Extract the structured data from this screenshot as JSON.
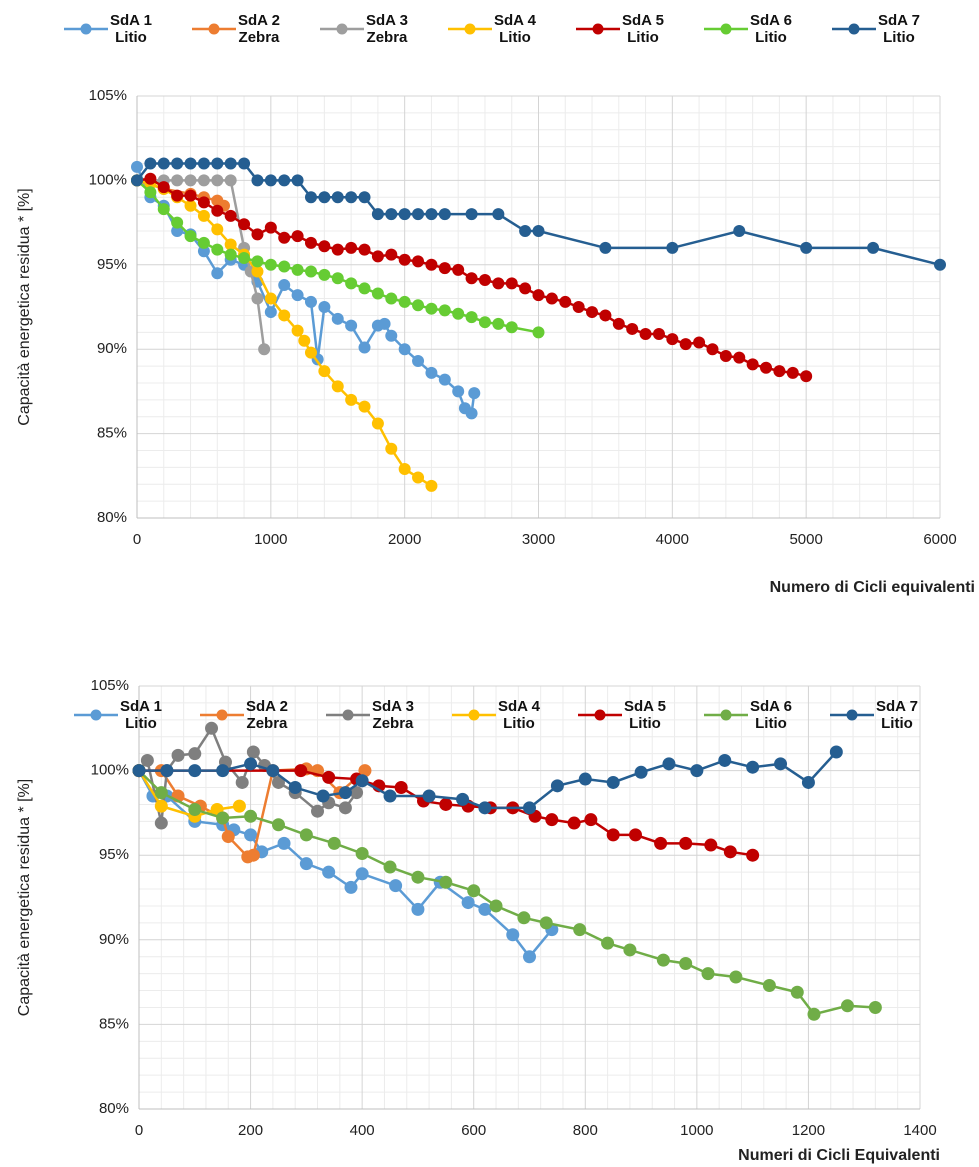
{
  "chart_data": [
    {
      "type": "line",
      "y_label": "Capacità energetica residua * [%]",
      "x_label": "Numero di Cicli equivalenti",
      "xlim": [
        0,
        6000
      ],
      "xticks": [
        0,
        1000,
        2000,
        3000,
        4000,
        5000,
        6000
      ],
      "ylim": [
        80,
        105
      ],
      "yticks": [
        {
          "value": 80,
          "label": "80%"
        },
        {
          "value": 85,
          "label": "85%"
        },
        {
          "value": 90,
          "label": "90%"
        },
        {
          "value": 95,
          "label": "95%"
        },
        {
          "value": 100,
          "label": "100%"
        },
        {
          "value": 105,
          "label": "105%"
        }
      ],
      "grid": true,
      "legend": "top",
      "series": [
        {
          "name": "SdA 1\nLitio",
          "color": "#5b9bd5",
          "x": [
            0,
            100,
            200,
            300,
            400,
            500,
            600,
            700,
            800,
            900,
            1000,
            1100,
            1200,
            1300,
            1350,
            1400,
            1500,
            1600,
            1700,
            1800,
            1850,
            1900,
            2000,
            2100,
            2200,
            2300,
            2400,
            2450,
            2500,
            2520
          ],
          "values": [
            100.8,
            99,
            98.5,
            97,
            96.8,
            95.8,
            94.5,
            95.3,
            95,
            94,
            92.2,
            93.8,
            93.2,
            92.8,
            89.4,
            92.5,
            91.8,
            91.4,
            90.1,
            91.4,
            91.5,
            90.8,
            90,
            89.3,
            88.6,
            88.2,
            87.5,
            86.5,
            86.2,
            87.4
          ]
        },
        {
          "name": "SdA 2\nZebra",
          "color": "#ed7d31",
          "x": [
            0,
            200,
            400,
            500,
            600,
            650
          ],
          "values": [
            100,
            99.5,
            99.2,
            99,
            98.8,
            98.5
          ]
        },
        {
          "name": "SdA 3\nZebra",
          "color": "#9e9e9e",
          "x": [
            0,
            100,
            200,
            300,
            400,
            500,
            600,
            700,
            800,
            850,
            900,
            950
          ],
          "values": [
            100,
            100,
            100,
            100,
            100,
            100,
            100,
            100,
            96,
            94.6,
            93,
            90
          ]
        },
        {
          "name": "SdA 4\nLitio",
          "color": "#ffc000",
          "x": [
            0,
            100,
            200,
            300,
            400,
            500,
            600,
            700,
            800,
            900,
            1000,
            1100,
            1200,
            1250,
            1300,
            1400,
            1500,
            1600,
            1700,
            1800,
            1900,
            2000,
            2100,
            2200
          ],
          "values": [
            100,
            99.8,
            99.5,
            99,
            98.5,
            97.9,
            97.1,
            96.2,
            95.6,
            94.6,
            93,
            92,
            91.1,
            90.5,
            89.8,
            88.7,
            87.8,
            87,
            86.6,
            85.6,
            84.1,
            82.9,
            82.4,
            81.9
          ]
        },
        {
          "name": "SdA 5\nLitio",
          "color": "#c00000",
          "x": [
            0,
            100,
            200,
            300,
            400,
            500,
            600,
            700,
            800,
            900,
            1000,
            1100,
            1200,
            1300,
            1400,
            1500,
            1600,
            1700,
            1800,
            1900,
            2000,
            2100,
            2200,
            2300,
            2400,
            2500,
            2600,
            2700,
            2800,
            2900,
            3000,
            3100,
            3200,
            3300,
            3400,
            3500,
            3600,
            3700,
            3800,
            3900,
            4000,
            4100,
            4200,
            4300,
            4400,
            4500,
            4600,
            4700,
            4800,
            4900,
            5000
          ],
          "values": [
            100,
            100.1,
            99.6,
            99.1,
            99.1,
            98.7,
            98.2,
            97.9,
            97.4,
            96.8,
            97.2,
            96.6,
            96.7,
            96.3,
            96.1,
            95.9,
            96,
            95.9,
            95.5,
            95.6,
            95.3,
            95.2,
            95,
            94.8,
            94.7,
            94.2,
            94.1,
            93.9,
            93.9,
            93.6,
            93.2,
            93,
            92.8,
            92.5,
            92.2,
            92,
            91.5,
            91.2,
            90.9,
            90.9,
            90.6,
            90.3,
            90.4,
            90,
            89.6,
            89.5,
            89.1,
            88.9,
            88.7,
            88.6,
            88.4
          ]
        },
        {
          "name": "SdA 6\nLitio",
          "color": "#66cc33",
          "x": [
            0,
            100,
            200,
            300,
            400,
            500,
            600,
            700,
            800,
            900,
            1000,
            1100,
            1200,
            1300,
            1400,
            1500,
            1600,
            1700,
            1800,
            1900,
            2000,
            2100,
            2200,
            2300,
            2400,
            2500,
            2600,
            2700,
            2800,
            3000
          ],
          "values": [
            100,
            99.3,
            98.3,
            97.5,
            96.7,
            96.3,
            95.9,
            95.6,
            95.4,
            95.2,
            95,
            94.9,
            94.7,
            94.6,
            94.4,
            94.2,
            93.9,
            93.6,
            93.3,
            93,
            92.8,
            92.6,
            92.4,
            92.3,
            92.1,
            91.9,
            91.6,
            91.5,
            91.3,
            91
          ]
        },
        {
          "name": "SdA 7\nLitio",
          "color": "#255e91",
          "x": [
            0,
            100,
            200,
            300,
            400,
            500,
            600,
            700,
            800,
            900,
            1000,
            1100,
            1200,
            1300,
            1400,
            1500,
            1600,
            1700,
            1800,
            1900,
            2000,
            2100,
            2200,
            2300,
            2500,
            2700,
            2900,
            3000,
            3500,
            4000,
            4500,
            5000,
            5500,
            6000
          ],
          "values": [
            100,
            101,
            101,
            101,
            101,
            101,
            101,
            101,
            101,
            100,
            100,
            100,
            100,
            99,
            99,
            99,
            99,
            99,
            98,
            98,
            98,
            98,
            98,
            98,
            98,
            98,
            97,
            97,
            96,
            96,
            97,
            96,
            96,
            95
          ]
        }
      ]
    },
    {
      "type": "line",
      "y_label": "Capacità energetica residua * [%]",
      "x_label": "Numeri di Cicli Equivalenti",
      "xlim": [
        0,
        1400
      ],
      "xticks": [
        0,
        200,
        400,
        600,
        800,
        1000,
        1200,
        1400
      ],
      "ylim": [
        80,
        105
      ],
      "yticks": [
        {
          "value": 80,
          "label": "80%"
        },
        {
          "value": 85,
          "label": "85%"
        },
        {
          "value": 90,
          "label": "90%"
        },
        {
          "value": 95,
          "label": "95%"
        },
        {
          "value": 100,
          "label": "100%"
        },
        {
          "value": 105,
          "label": "105%"
        }
      ],
      "grid": true,
      "legend": "top",
      "series": [
        {
          "name": "SdA 1\nLitio",
          "color": "#5b9bd5",
          "x": [
            0,
            25,
            50,
            100,
            150,
            170,
            200,
            220,
            260,
            300,
            340,
            380,
            400,
            460,
            500,
            540,
            590,
            620,
            670,
            700,
            740
          ],
          "values": [
            100,
            98.5,
            98.5,
            97,
            96.8,
            96.5,
            96.2,
            95.2,
            95.7,
            94.5,
            94,
            93.1,
            93.9,
            93.2,
            91.8,
            93.4,
            92.2,
            91.8,
            90.3,
            89,
            90.6
          ]
        },
        {
          "name": "SdA 2\nZebra",
          "color": "#ed7d31",
          "x": [
            0,
            40,
            70,
            110,
            150,
            160,
            195,
            205,
            240,
            300,
            320,
            360,
            405
          ],
          "values": [
            100,
            100,
            98.5,
            97.9,
            97.2,
            96.1,
            94.9,
            95,
            100,
            100.1,
            100,
            98.7,
            100
          ]
        },
        {
          "name": "SdA 3\nZebra",
          "color": "#7f7f7f",
          "x": [
            0,
            15,
            40,
            50,
            70,
            100,
            130,
            155,
            185,
            205,
            225,
            250,
            280,
            320,
            340,
            370,
            390
          ],
          "values": [
            100,
            100.6,
            96.9,
            100,
            100.9,
            101,
            102.5,
            100.5,
            99.3,
            101.1,
            100.3,
            99.3,
            98.7,
            97.6,
            98.1,
            97.8,
            98.7
          ]
        },
        {
          "name": "SdA 4\nLitio",
          "color": "#ffc000",
          "x": [
            0,
            40,
            100,
            140,
            180
          ],
          "values": [
            100,
            97.9,
            97.3,
            97.7,
            97.9
          ]
        },
        {
          "name": "SdA 5\nLitio",
          "color": "#c00000",
          "x": [
            0,
            290,
            340,
            390,
            430,
            470,
            510,
            550,
            590,
            630,
            670,
            710,
            740,
            780,
            810,
            850,
            890,
            935,
            980,
            1025,
            1060,
            1100
          ],
          "values": [
            100,
            100,
            99.6,
            99.5,
            99.1,
            99,
            98.2,
            98,
            97.9,
            97.8,
            97.8,
            97.3,
            97.1,
            96.9,
            97.1,
            96.2,
            96.2,
            95.7,
            95.7,
            95.6,
            95.2,
            95
          ]
        },
        {
          "name": "SdA 6\nLitio",
          "color": "#70ad47",
          "x": [
            0,
            40,
            100,
            150,
            200,
            250,
            300,
            350,
            400,
            450,
            500,
            550,
            600,
            640,
            690,
            730,
            790,
            840,
            880,
            940,
            980,
            1020,
            1070,
            1130,
            1180,
            1210,
            1270,
            1320
          ],
          "values": [
            100,
            98.7,
            97.7,
            97.2,
            97.3,
            96.8,
            96.2,
            95.7,
            95.1,
            94.3,
            93.7,
            93.4,
            92.9,
            92,
            91.3,
            91,
            90.6,
            89.8,
            89.4,
            88.8,
            88.6,
            88,
            87.8,
            87.3,
            86.9,
            85.6,
            86.1,
            86
          ]
        },
        {
          "name": "SdA 7\nLitio",
          "color": "#255e91",
          "x": [
            0,
            50,
            100,
            150,
            200,
            240,
            280,
            330,
            370,
            400,
            450,
            520,
            580,
            620,
            700,
            750,
            800,
            850,
            900,
            950,
            1000,
            1050,
            1100,
            1150,
            1200,
            1250
          ],
          "values": [
            100,
            100,
            100,
            100,
            100.4,
            100,
            99,
            98.5,
            98.7,
            99.4,
            98.5,
            98.5,
            98.3,
            97.8,
            97.8,
            99.1,
            99.5,
            99.3,
            99.9,
            100.4,
            100,
            100.6,
            100.2,
            100.4,
            99.3,
            101.1
          ]
        }
      ]
    }
  ]
}
